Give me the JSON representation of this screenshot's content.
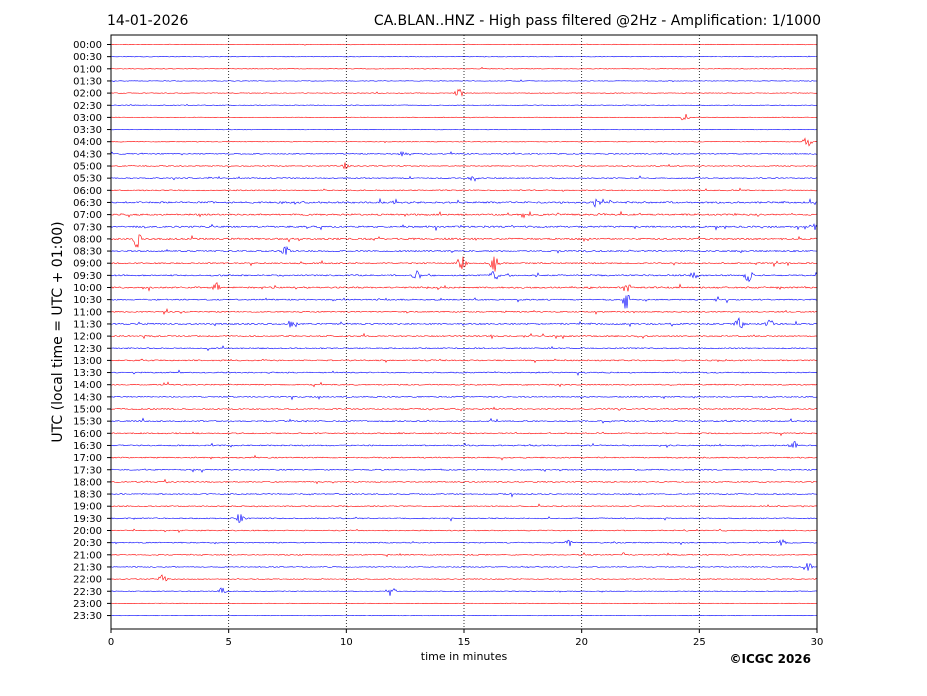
{
  "header": {
    "date": "14-01-2026",
    "title": "CA.BLAN..HNZ - High pass filtered @2Hz - Amplification: 1/1000"
  },
  "footer": {
    "copyright": "©ICGC 2026"
  },
  "chart_data": {
    "type": "line",
    "title": "CA.BLAN..HNZ - High pass filtered @2Hz - Amplification: 1/1000",
    "date": "14-01-2026",
    "xlabel": "time in minutes",
    "ylabel": "UTC (local time = UTC + 01:00)",
    "xlim": [
      0,
      30
    ],
    "x_ticks": [
      "0",
      "5",
      "10",
      "15",
      "20",
      "25",
      "30"
    ],
    "vertical_gridlines_at": [
      5,
      10,
      15,
      20,
      25
    ],
    "grid_style": "dotted",
    "row_labels": [
      "00:00",
      "00:30",
      "01:00",
      "01:30",
      "02:00",
      "02:30",
      "03:00",
      "03:30",
      "04:00",
      "04:30",
      "05:00",
      "05:30",
      "06:00",
      "06:30",
      "07:00",
      "07:30",
      "08:00",
      "08:30",
      "09:00",
      "09:30",
      "10:00",
      "10:30",
      "11:00",
      "11:30",
      "12:00",
      "12:30",
      "13:00",
      "13:30",
      "14:00",
      "14:30",
      "15:00",
      "15:30",
      "16:00",
      "16:30",
      "17:00",
      "17:30",
      "18:00",
      "18:30",
      "19:00",
      "19:30",
      "20:00",
      "20:30",
      "21:00",
      "21:30",
      "22:00",
      "22:30",
      "23:00",
      "23:30"
    ],
    "trace_colors": [
      "#ff0000",
      "#0000ff"
    ],
    "color_pattern": "alternating red/blue per 30-minute row, starting red at 00:00",
    "activity_level": [
      0.05,
      0.08,
      0.05,
      0.1,
      0.15,
      0.15,
      0.1,
      0.08,
      0.15,
      0.4,
      0.3,
      0.45,
      0.45,
      0.95,
      0.85,
      0.85,
      0.9,
      0.7,
      0.6,
      0.7,
      0.8,
      0.6,
      0.5,
      0.7,
      0.6,
      0.5,
      0.55,
      0.5,
      0.5,
      0.5,
      0.55,
      0.6,
      0.55,
      0.55,
      0.5,
      0.5,
      0.45,
      0.45,
      0.4,
      0.45,
      0.4,
      0.45,
      0.4,
      0.3,
      0.25,
      0.2,
      0.05,
      0.0
    ],
    "events": [
      {
        "row": "02:00",
        "minute": 14.8,
        "amp": 0.6
      },
      {
        "row": "03:00",
        "minute": 24.4,
        "amp": 0.7
      },
      {
        "row": "04:00",
        "minute": 29.6,
        "amp": 0.9
      },
      {
        "row": "04:30",
        "minute": 12.4,
        "amp": 0.6
      },
      {
        "row": "05:00",
        "minute": 10.0,
        "amp": 0.6
      },
      {
        "row": "05:30",
        "minute": 15.4,
        "amp": 0.5
      },
      {
        "row": "06:30",
        "minute": 20.6,
        "amp": 0.6
      },
      {
        "row": "07:30",
        "minute": 29.9,
        "amp": 0.8
      },
      {
        "row": "08:00",
        "minute": 1.1,
        "amp": 1.4
      },
      {
        "row": "08:30",
        "minute": 7.4,
        "amp": 0.7
      },
      {
        "row": "09:00",
        "minute": 14.9,
        "amp": 1.3
      },
      {
        "row": "09:00",
        "minute": 16.3,
        "amp": 1.2
      },
      {
        "row": "09:30",
        "minute": 13.0,
        "amp": 0.8
      },
      {
        "row": "09:30",
        "minute": 16.3,
        "amp": 0.8
      },
      {
        "row": "09:30",
        "minute": 24.8,
        "amp": 0.6
      },
      {
        "row": "09:30",
        "minute": 27.1,
        "amp": 1.0
      },
      {
        "row": "10:00",
        "minute": 4.5,
        "amp": 0.6
      },
      {
        "row": "10:00",
        "minute": 21.9,
        "amp": 0.7
      },
      {
        "row": "10:30",
        "minute": 21.9,
        "amp": 1.6
      },
      {
        "row": "11:30",
        "minute": 7.7,
        "amp": 0.8
      },
      {
        "row": "11:30",
        "minute": 26.7,
        "amp": 0.9
      },
      {
        "row": "11:30",
        "minute": 28.0,
        "amp": 0.6
      },
      {
        "row": "16:30",
        "minute": 29.0,
        "amp": 0.7
      },
      {
        "row": "19:30",
        "minute": 5.5,
        "amp": 0.7
      },
      {
        "row": "20:30",
        "minute": 19.5,
        "amp": 0.5
      },
      {
        "row": "20:30",
        "minute": 28.5,
        "amp": 0.5
      },
      {
        "row": "21:30",
        "minute": 29.6,
        "amp": 0.8
      },
      {
        "row": "22:00",
        "minute": 2.2,
        "amp": 0.9
      },
      {
        "row": "22:30",
        "minute": 4.7,
        "amp": 0.6
      },
      {
        "row": "22:30",
        "minute": 11.9,
        "amp": 1.1
      }
    ]
  }
}
